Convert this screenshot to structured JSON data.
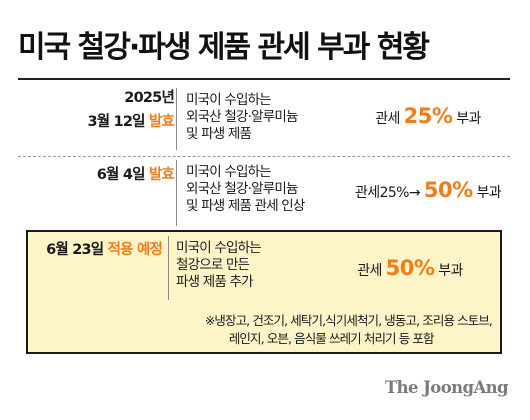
{
  "title": "미국 철강·파생 제품 관세 부과 현황",
  "colors": {
    "accent": "#f07d1a",
    "highlight_bg": "#fdf4c7",
    "text": "#1a1a1a",
    "logo": "#7b7b7b"
  },
  "rows": [
    {
      "year": "2025년",
      "date": "3월 12일",
      "status": "발효",
      "desc": [
        "미국이 수입하는",
        "외국산 철강·알루미늄",
        "및 파생 제품"
      ],
      "tariff_prefix": "관세",
      "tariff_value": "25%",
      "tariff_suffix": "부과"
    },
    {
      "date": "6월 4일",
      "status": "발효",
      "desc": [
        "미국이 수입하는",
        "외국산 철강·알루미늄",
        "및 파생 제품 관세 인상"
      ],
      "tariff_prefix": "관세25%→",
      "tariff_value": "50%",
      "tariff_suffix": "부과"
    },
    {
      "date": "6월 23일",
      "status": "적용 예정",
      "desc": [
        "미국이 수입하는",
        "철강으로 만든",
        "파생 제품 추가"
      ],
      "tariff_prefix": "관세",
      "tariff_value": "50%",
      "tariff_suffix": "부과"
    }
  ],
  "note": [
    "※냉장고, 건조기, 세탁기,식기세척기, 냉동고, 조리용 스토브,",
    "레인지, 오븐, 음식물 쓰레기 처리기 등 포함"
  ],
  "logo": "The JoongAng"
}
